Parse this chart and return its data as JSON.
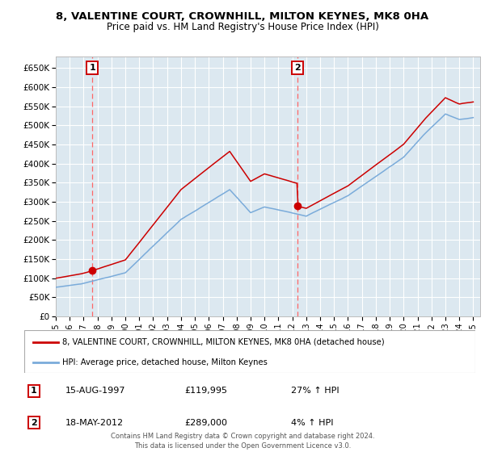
{
  "title": "8, VALENTINE COURT, CROWNHILL, MILTON KEYNES, MK8 0HA",
  "subtitle": "Price paid vs. HM Land Registry's House Price Index (HPI)",
  "ylim": [
    0,
    680000
  ],
  "yticks": [
    0,
    50000,
    100000,
    150000,
    200000,
    250000,
    300000,
    350000,
    400000,
    450000,
    500000,
    550000,
    600000,
    650000
  ],
  "ytick_labels": [
    "£0",
    "£50K",
    "£100K",
    "£150K",
    "£200K",
    "£250K",
    "£300K",
    "£350K",
    "£400K",
    "£450K",
    "£500K",
    "£550K",
    "£600K",
    "£650K"
  ],
  "sale1_date": 1997.62,
  "sale1_price": 119995,
  "sale1_label": "1",
  "sale1_text": "15-AUG-1997",
  "sale1_price_text": "£119,995",
  "sale1_hpi_text": "27% ↑ HPI",
  "sale2_date": 2012.38,
  "sale2_price": 289000,
  "sale2_label": "2",
  "sale2_text": "18-MAY-2012",
  "sale2_price_text": "£289,000",
  "sale2_hpi_text": "4% ↑ HPI",
  "line1_color": "#cc0000",
  "line2_color": "#7aabda",
  "vline_color": "#ff6666",
  "dot_color": "#cc0000",
  "bg_color": "#dce8f0",
  "grid_color": "#ffffff",
  "legend1_label": "8, VALENTINE COURT, CROWNHILL, MILTON KEYNES, MK8 0HA (detached house)",
  "legend2_label": "HPI: Average price, detached house, Milton Keynes",
  "footer": "Contains HM Land Registry data © Crown copyright and database right 2024.\nThis data is licensed under the Open Government Licence v3.0.",
  "xmin": 1995,
  "xmax": 2025.5
}
